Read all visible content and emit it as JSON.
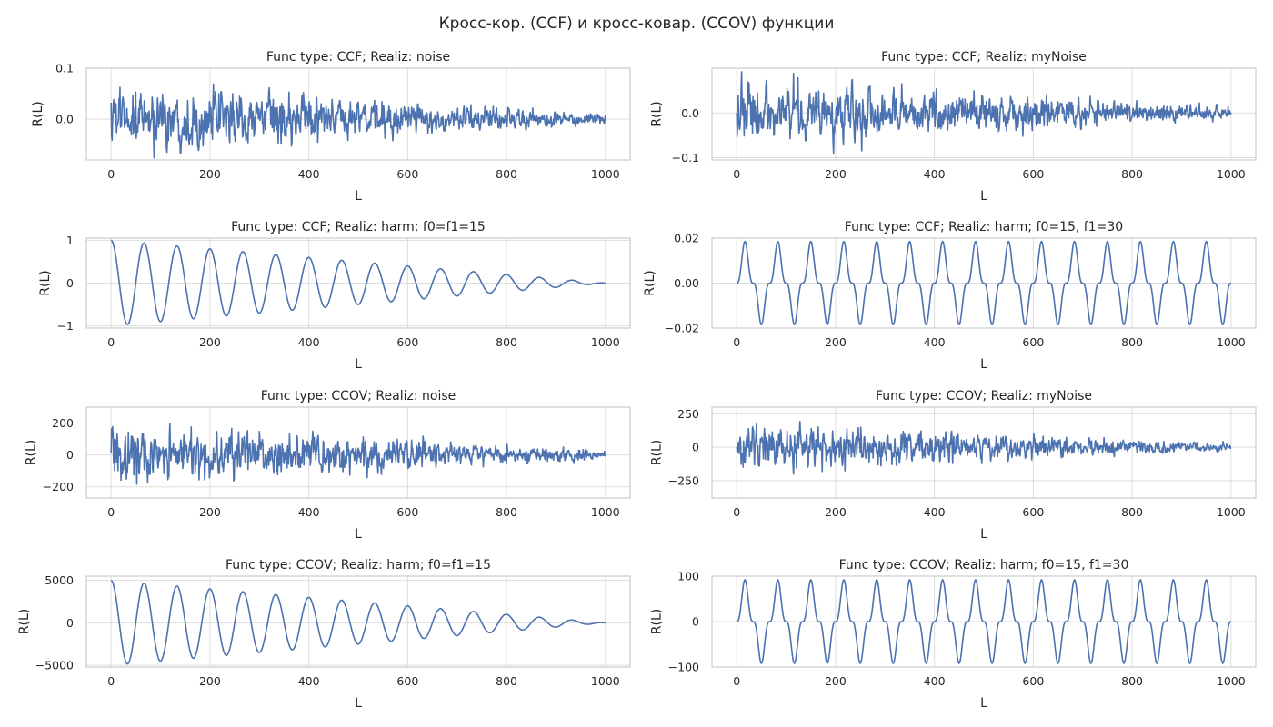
{
  "figure": {
    "title": "Кросс-кор. (CCF) и кросс-ковар. (CCOV) функции",
    "line_color": "#4c72b0",
    "grid_color": "#dddddd",
    "spine_color": "#cccccc"
  },
  "chart_data": [
    {
      "type": "line",
      "title": "Func type: CCF; Realiz: noise",
      "xlabel": "L",
      "ylabel": "R(L)",
      "xlim": [
        -50,
        1050
      ],
      "ylim": [
        -0.08,
        0.1
      ],
      "xticks": [
        0,
        200,
        400,
        600,
        800,
        1000
      ],
      "yticks": [
        0.0,
        0.1
      ],
      "ytick_labels": [
        "0.0",
        "0.1"
      ],
      "series": [
        {
          "kind": "noise",
          "x_range": [
            0,
            1000
          ],
          "amplitude_start": 0.045,
          "amplitude_end": 0.007,
          "peak": 0.092
        }
      ]
    },
    {
      "type": "line",
      "title": "Func type: CCF; Realiz: myNoise",
      "xlabel": "L",
      "ylabel": "R(L)",
      "xlim": [
        -50,
        1050
      ],
      "ylim": [
        -0.105,
        0.1
      ],
      "xticks": [
        0,
        200,
        400,
        600,
        800,
        1000
      ],
      "yticks": [
        -0.1,
        0.0
      ],
      "ytick_labels": [
        "−0.1",
        "0.0"
      ],
      "series": [
        {
          "kind": "noise",
          "x_range": [
            0,
            1000
          ],
          "amplitude_start": 0.05,
          "amplitude_end": 0.008,
          "peak": 0.092
        }
      ]
    },
    {
      "type": "line",
      "title": "Func type: CCF; Realiz: harm; f0=f1=15",
      "xlabel": "L",
      "ylabel": "R(L)",
      "xlim": [
        -50,
        1050
      ],
      "ylim": [
        -1.05,
        1.05
      ],
      "xticks": [
        0,
        200,
        400,
        600,
        800,
        1000
      ],
      "yticks": [
        -1,
        0,
        1
      ],
      "ytick_labels": [
        "−1",
        "0",
        "1"
      ],
      "series": [
        {
          "kind": "cos_decay",
          "x_range": [
            0,
            1000
          ],
          "amplitude": 1.0,
          "cycles": 15
        }
      ]
    },
    {
      "type": "line",
      "title": "Func type: CCF; Realiz: harm; f0=15, f1=30",
      "xlabel": "L",
      "ylabel": "R(L)",
      "xlim": [
        -50,
        1050
      ],
      "ylim": [
        -0.02,
        0.02
      ],
      "xticks": [
        0,
        200,
        400,
        600,
        800,
        1000
      ],
      "yticks": [
        -0.02,
        0.0,
        0.02
      ],
      "ytick_labels": [
        "−0.02",
        "0.00",
        "0.02"
      ],
      "series": [
        {
          "kind": "cubic_sine",
          "x_range": [
            0,
            1000
          ],
          "amplitude": 0.0185,
          "cycles": 15
        }
      ]
    },
    {
      "type": "line",
      "title": "Func type: CCOV; Realiz: noise",
      "xlabel": "L",
      "ylabel": "R(L)",
      "xlim": [
        -50,
        1050
      ],
      "ylim": [
        -270,
        300
      ],
      "xticks": [
        0,
        200,
        400,
        600,
        800,
        1000
      ],
      "yticks": [
        -200,
        0,
        200
      ],
      "ytick_labels": [
        "−200",
        "0",
        "200"
      ],
      "series": [
        {
          "kind": "noise",
          "x_range": [
            0,
            1000
          ],
          "amplitude_start": 130,
          "amplitude_end": 20,
          "peak": 275
        }
      ]
    },
    {
      "type": "line",
      "title": "Func type: CCOV; Realiz: myNoise",
      "xlabel": "L",
      "ylabel": "R(L)",
      "xlim": [
        -50,
        1050
      ],
      "ylim": [
        -380,
        300
      ],
      "xticks": [
        0,
        200,
        400,
        600,
        800,
        1000
      ],
      "yticks": [
        -250,
        0,
        250
      ],
      "ytick_labels": [
        "−250",
        "0",
        "250"
      ],
      "series": [
        {
          "kind": "noise",
          "x_range": [
            0,
            1000
          ],
          "amplitude_start": 120,
          "amplitude_end": 18,
          "peak": 270
        }
      ]
    },
    {
      "type": "line",
      "title": "Func type: CCOV; Realiz: harm; f0=f1=15",
      "xlabel": "L",
      "ylabel": "R(L)",
      "xlim": [
        -50,
        1050
      ],
      "ylim": [
        -5200,
        5500
      ],
      "xticks": [
        0,
        200,
        400,
        600,
        800,
        1000
      ],
      "yticks": [
        -5000,
        0,
        5000
      ],
      "ytick_labels": [
        "−5000",
        "0",
        "5000"
      ],
      "series": [
        {
          "kind": "cos_decay",
          "x_range": [
            0,
            1000
          ],
          "amplitude": 5000,
          "cycles": 15
        }
      ]
    },
    {
      "type": "line",
      "title": "Func type: CCOV; Realiz: harm; f0=15, f1=30",
      "xlabel": "L",
      "ylabel": "R(L)",
      "xlim": [
        -50,
        1050
      ],
      "ylim": [
        -100,
        100
      ],
      "xticks": [
        0,
        200,
        400,
        600,
        800,
        1000
      ],
      "yticks": [
        -100,
        0,
        100
      ],
      "ytick_labels": [
        "−100",
        "0",
        "100"
      ],
      "series": [
        {
          "kind": "cubic_sine",
          "x_range": [
            0,
            1000
          ],
          "amplitude": 92,
          "cycles": 15
        }
      ]
    }
  ]
}
